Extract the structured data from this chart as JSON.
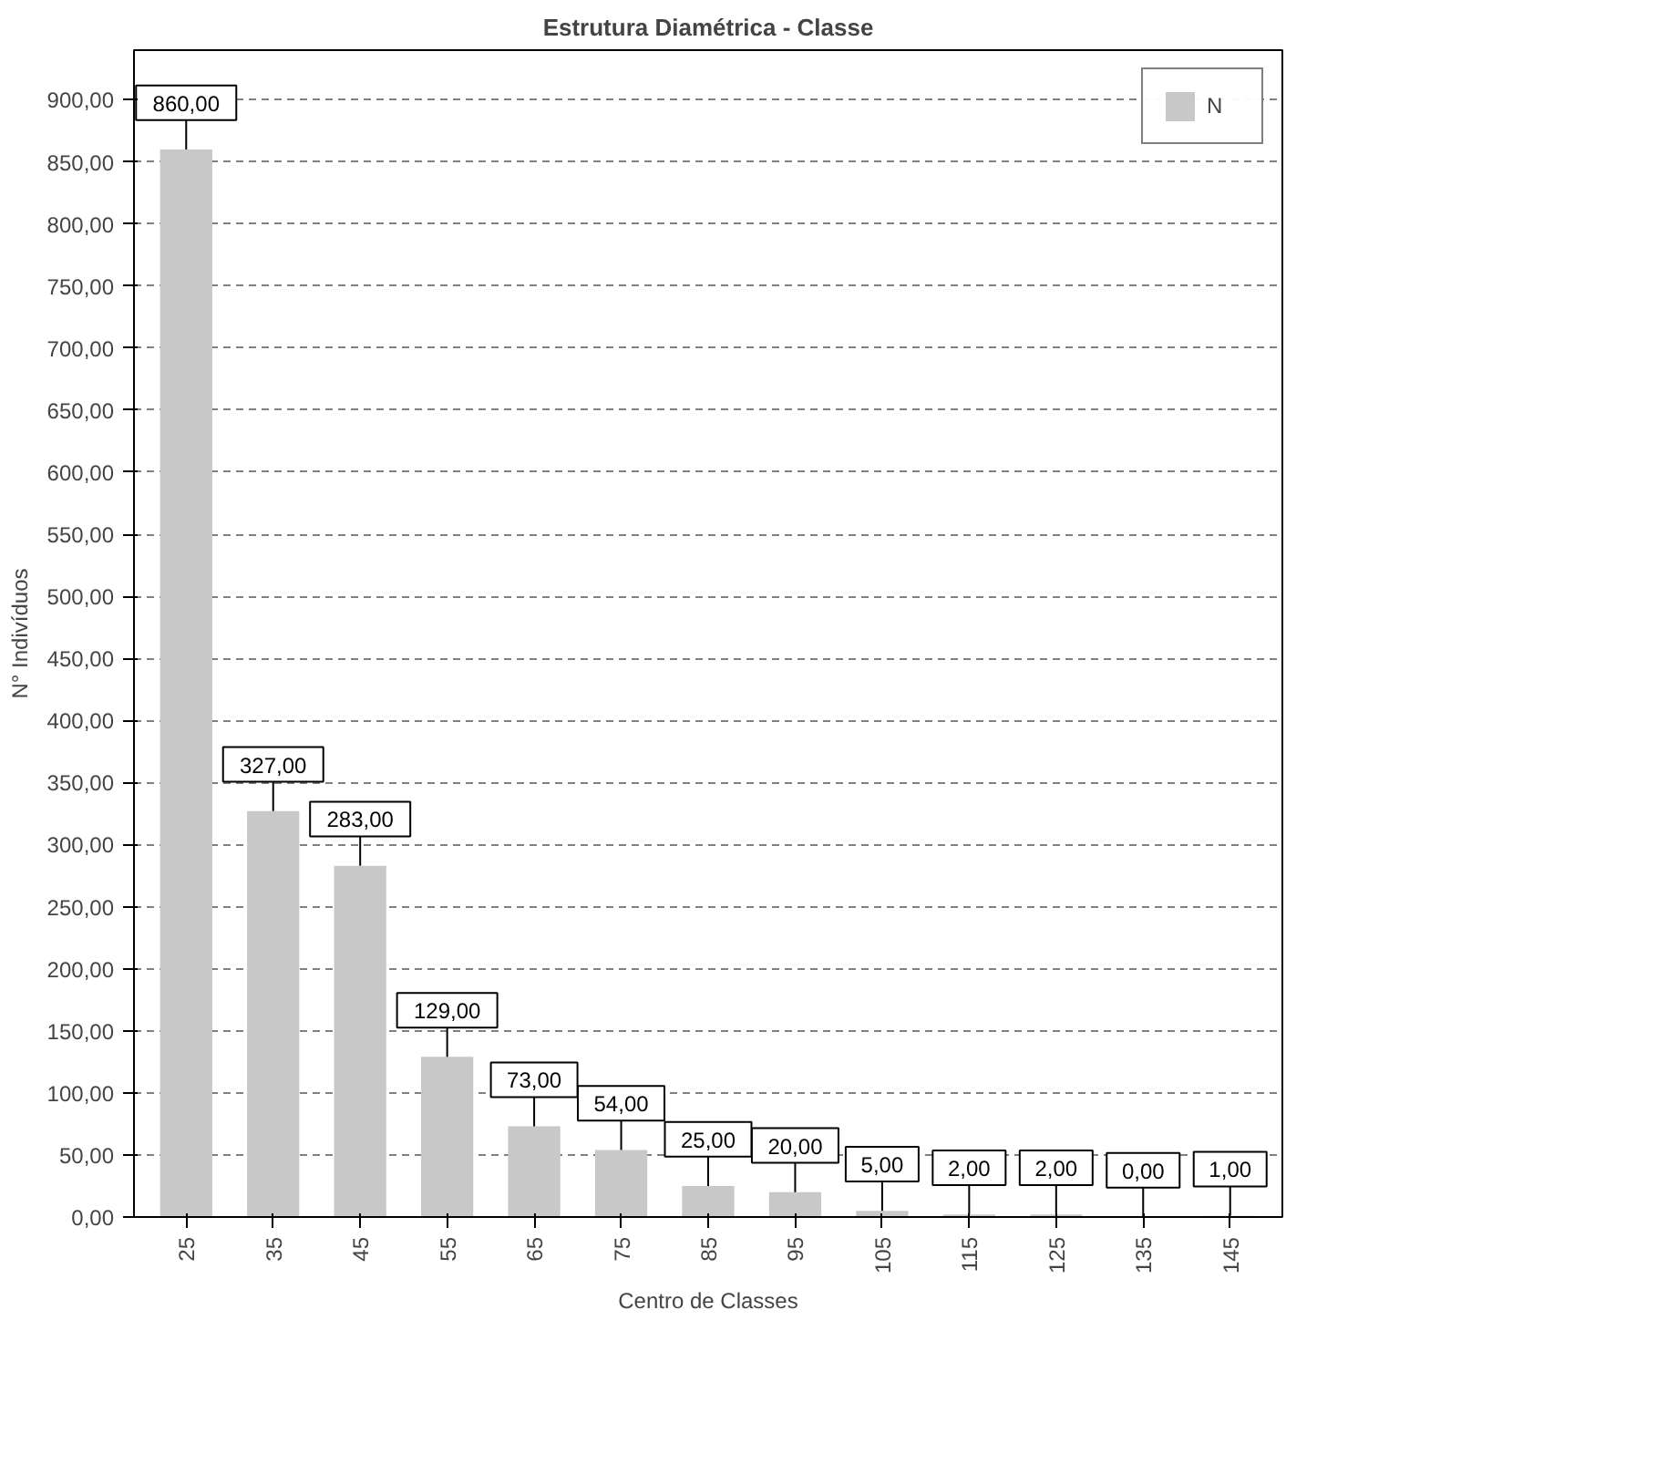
{
  "chart_data": {
    "type": "bar",
    "title": "Estrutura Diamétrica - Classe",
    "xlabel": "Centro de Classes",
    "ylabel": "N° Indivíduos",
    "categories": [
      "25",
      "35",
      "45",
      "55",
      "65",
      "75",
      "85",
      "95",
      "105",
      "115",
      "125",
      "135",
      "145"
    ],
    "series": [
      {
        "name": "N",
        "color": "#c8c8c8",
        "values": [
          860,
          327,
          283,
          129,
          73,
          54,
          25,
          20,
          5,
          2,
          2,
          0,
          1
        ],
        "value_labels": [
          "860,00",
          "327,00",
          "283,00",
          "129,00",
          "73,00",
          "54,00",
          "25,00",
          "20,00",
          "5,00",
          "2,00",
          "2,00",
          "0,00",
          "1,00"
        ]
      }
    ],
    "ylim": [
      0,
      940
    ],
    "yticks": [
      {
        "value": 0,
        "label": "0,00"
      },
      {
        "value": 50,
        "label": "50,00"
      },
      {
        "value": 100,
        "label": "100,00"
      },
      {
        "value": 150,
        "label": "150,00"
      },
      {
        "value": 200,
        "label": "200,00"
      },
      {
        "value": 250,
        "label": "250,00"
      },
      {
        "value": 300,
        "label": "300,00"
      },
      {
        "value": 350,
        "label": "350,00"
      },
      {
        "value": 400,
        "label": "400,00"
      },
      {
        "value": 450,
        "label": "450,00"
      },
      {
        "value": 500,
        "label": "500,00"
      },
      {
        "value": 550,
        "label": "550,00"
      },
      {
        "value": 600,
        "label": "600,00"
      },
      {
        "value": 650,
        "label": "650,00"
      },
      {
        "value": 700,
        "label": "700,00"
      },
      {
        "value": 750,
        "label": "750,00"
      },
      {
        "value": 800,
        "label": "800,00"
      },
      {
        "value": 850,
        "label": "850,00"
      },
      {
        "value": 900,
        "label": "900,00"
      }
    ],
    "grid": "y",
    "legend": "top right"
  }
}
